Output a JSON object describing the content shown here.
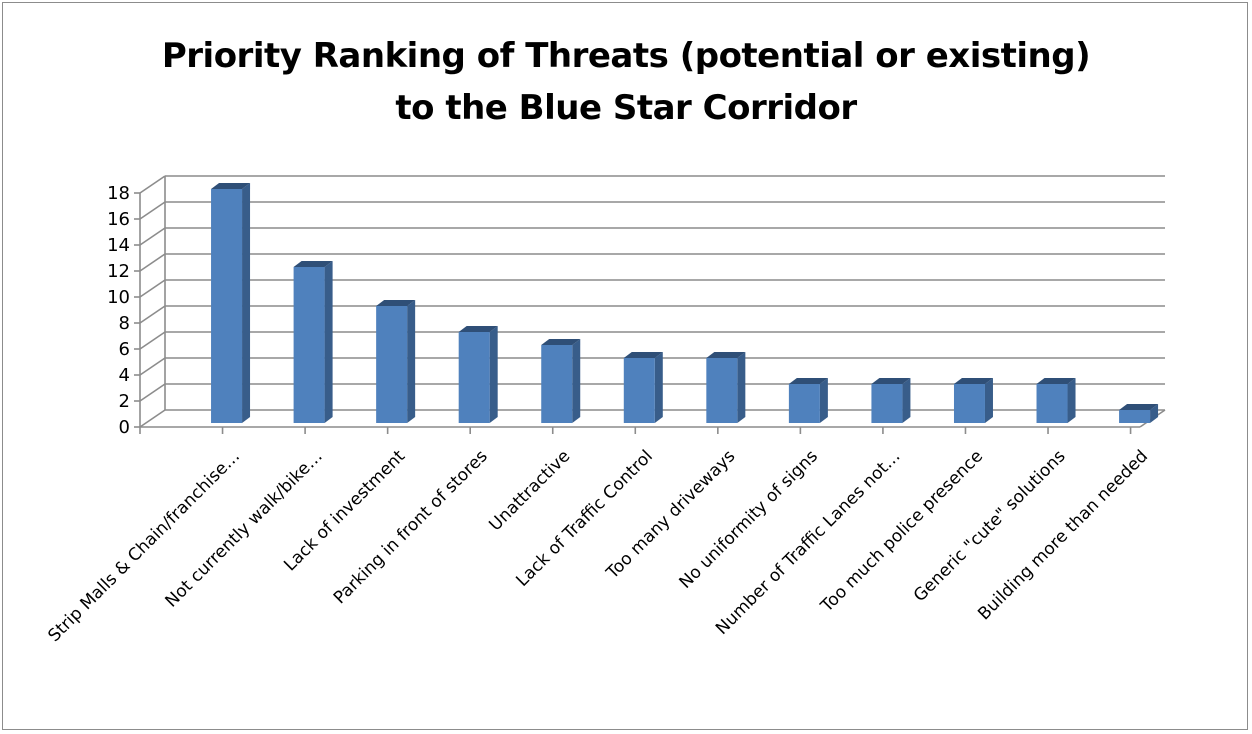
{
  "chart_data": {
    "type": "bar",
    "title": "Priority Ranking of Threats (potential or existing)\nto the Blue Star Corridor",
    "xlabel": "",
    "ylabel": "",
    "ylim": [
      0,
      18
    ],
    "ytick_step": 2,
    "grid": true,
    "three_d": true,
    "categories": [
      "Strip Malls & Chain/franchise…",
      "Not currently walk/bike…",
      "Lack of investment",
      "Parking in front of stores",
      "Unattractive",
      "Lack of Traffic Control",
      "Too many driveways",
      "No uniformity of signs",
      "Number of Traffic Lanes not…",
      "Too much police presence",
      "Generic \"cute\" solutions",
      "Building more than needed"
    ],
    "values": [
      18,
      12,
      9,
      7,
      6,
      5,
      5,
      3,
      3,
      3,
      3,
      1
    ],
    "colors": {
      "bar_front": "#4f81bd",
      "bar_side": "#385d8a",
      "bar_top": "#2f4f77",
      "grid": "#8c8c8c"
    }
  }
}
